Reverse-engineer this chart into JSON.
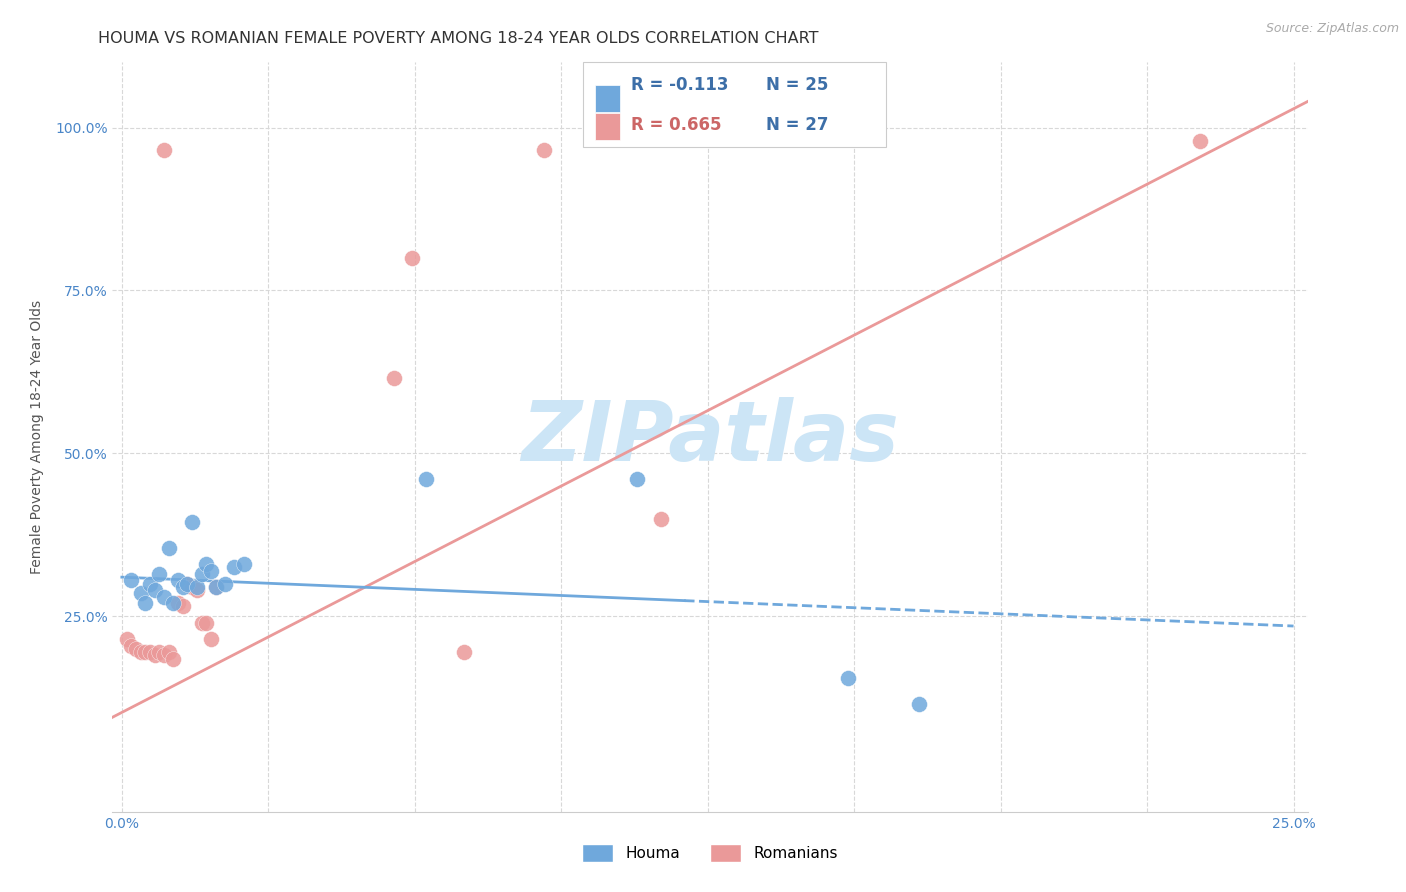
{
  "title": "HOUMA VS ROMANIAN FEMALE POVERTY AMONG 18-24 YEAR OLDS CORRELATION CHART",
  "source": "Source: ZipAtlas.com",
  "ylabel": "Female Poverty Among 18-24 Year Olds",
  "xlim": [
    -0.002,
    0.253
  ],
  "ylim": [
    -0.05,
    1.1
  ],
  "y_ticks": [
    0.25,
    0.5,
    0.75,
    1.0
  ],
  "y_tick_labels": [
    "25.0%",
    "50.0%",
    "75.0%",
    "100.0%"
  ],
  "houma_color": "#6fa8dc",
  "romanian_color": "#ea9999",
  "legend_R_houma": "R = -0.113",
  "legend_N_houma": "N = 25",
  "legend_R_romanian": "R = 0.665",
  "legend_N_romanian": "N = 27",
  "houma_points": [
    [
      0.002,
      0.305
    ],
    [
      0.004,
      0.285
    ],
    [
      0.005,
      0.27
    ],
    [
      0.006,
      0.3
    ],
    [
      0.007,
      0.29
    ],
    [
      0.008,
      0.315
    ],
    [
      0.009,
      0.28
    ],
    [
      0.01,
      0.355
    ],
    [
      0.011,
      0.27
    ],
    [
      0.012,
      0.305
    ],
    [
      0.013,
      0.295
    ],
    [
      0.014,
      0.3
    ],
    [
      0.015,
      0.395
    ],
    [
      0.016,
      0.295
    ],
    [
      0.017,
      0.315
    ],
    [
      0.018,
      0.33
    ],
    [
      0.019,
      0.32
    ],
    [
      0.02,
      0.295
    ],
    [
      0.022,
      0.3
    ],
    [
      0.024,
      0.325
    ],
    [
      0.026,
      0.33
    ],
    [
      0.065,
      0.46
    ],
    [
      0.11,
      0.46
    ],
    [
      0.155,
      0.155
    ],
    [
      0.17,
      0.115
    ]
  ],
  "romanian_points": [
    [
      0.001,
      0.215
    ],
    [
      0.002,
      0.205
    ],
    [
      0.003,
      0.2
    ],
    [
      0.004,
      0.195
    ],
    [
      0.005,
      0.195
    ],
    [
      0.006,
      0.195
    ],
    [
      0.007,
      0.19
    ],
    [
      0.008,
      0.195
    ],
    [
      0.009,
      0.19
    ],
    [
      0.01,
      0.195
    ],
    [
      0.011,
      0.185
    ],
    [
      0.012,
      0.27
    ],
    [
      0.013,
      0.265
    ],
    [
      0.014,
      0.3
    ],
    [
      0.015,
      0.295
    ],
    [
      0.016,
      0.29
    ],
    [
      0.017,
      0.24
    ],
    [
      0.018,
      0.24
    ],
    [
      0.019,
      0.215
    ],
    [
      0.02,
      0.295
    ],
    [
      0.058,
      0.615
    ],
    [
      0.062,
      0.8
    ],
    [
      0.073,
      0.195
    ],
    [
      0.09,
      0.965
    ],
    [
      0.115,
      0.4
    ],
    [
      0.23,
      0.98
    ],
    [
      0.009,
      0.965
    ]
  ],
  "houma_line": {
    "x0": 0.0,
    "y0": 0.31,
    "x1": 0.25,
    "y1": 0.235,
    "solid_end": 0.12
  },
  "romanian_line": {
    "x0": -0.002,
    "y0": 0.095,
    "x1": 0.253,
    "y1": 1.04
  },
  "background_color": "#ffffff",
  "grid_color": "#d8d8d8",
  "title_fontsize": 11.5,
  "axis_label_fontsize": 10,
  "tick_fontsize": 10,
  "source_fontsize": 9,
  "watermark_text": "ZIPatlas",
  "watermark_color": "#cce5f6",
  "watermark_fontsize": 60
}
